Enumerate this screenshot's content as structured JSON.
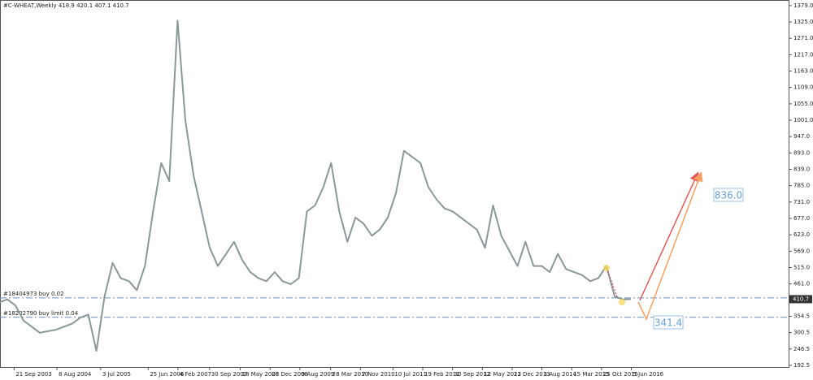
{
  "chart_data": {
    "type": "line",
    "title": "#C-WHEAT,Weekly  418.9 420.1 407.1 410.7",
    "color": "#8c9898",
    "x": [
      "2003-06-01",
      "2003-08-01",
      "2003-10-01",
      "2003-12-01",
      "2004-02-01",
      "2004-04-01",
      "2004-06-01",
      "2004-08-01",
      "2004-10-01",
      "2004-12-01",
      "2005-02-01",
      "2005-04-01",
      "2005-06-01",
      "2005-08-01",
      "2005-10-01",
      "2005-12-01",
      "2006-02-01",
      "2006-04-01",
      "2006-06-01",
      "2006-08-01",
      "2006-10-01",
      "2006-12-01",
      "2007-02-01",
      "2007-04-01",
      "2007-06-01",
      "2007-08-01",
      "2007-10-01",
      "2007-12-01",
      "2008-02-01",
      "2008-04-01",
      "2008-06-01",
      "2008-08-01",
      "2008-10-01",
      "2008-12-01",
      "2009-02-01",
      "2009-04-01",
      "2009-06-01",
      "2009-08-01",
      "2009-10-01",
      "2009-12-01",
      "2010-02-01",
      "2010-04-01",
      "2010-06-01",
      "2010-08-01",
      "2010-10-01",
      "2010-12-01",
      "2011-02-01",
      "2011-04-01",
      "2011-06-01",
      "2011-08-01",
      "2011-10-01",
      "2011-12-01",
      "2012-02-01",
      "2012-04-01",
      "2012-06-01",
      "2012-08-01",
      "2012-10-01",
      "2012-12-01",
      "2013-02-01",
      "2013-04-01",
      "2013-06-01",
      "2013-08-01",
      "2013-10-01",
      "2013-12-01",
      "2014-02-01",
      "2014-04-01",
      "2014-06-01",
      "2014-08-01",
      "2014-10-01",
      "2014-12-01",
      "2015-02-01",
      "2015-04-01",
      "2015-06-01",
      "2015-08-01",
      "2015-10-01",
      "2015-12-01",
      "2016-02-01",
      "2016-04-01",
      "2016-06-01"
    ],
    "values": [
      400,
      410,
      390,
      340,
      320,
      300,
      305,
      310,
      320,
      330,
      350,
      360,
      240,
      420,
      530,
      480,
      470,
      440,
      520,
      700,
      860,
      800,
      1330,
      1000,
      820,
      700,
      580,
      520,
      560,
      600,
      540,
      500,
      480,
      470,
      500,
      470,
      460,
      480,
      700,
      720,
      780,
      860,
      700,
      600,
      680,
      660,
      620,
      640,
      680,
      760,
      900,
      880,
      860,
      780,
      740,
      710,
      700,
      680,
      660,
      640,
      580,
      720,
      620,
      570,
      520,
      600,
      520,
      520,
      500,
      560,
      510,
      500,
      490,
      470,
      480,
      520,
      420,
      410,
      410.7
    ],
    "xlim": [
      "2003-06-07",
      "2019-09-01"
    ],
    "xticks": [
      {
        "value": "2003-09-21",
        "label": "21 Sep 2003"
      },
      {
        "value": "2004-08-08",
        "label": "8 Aug 2004"
      },
      {
        "value": "2005-07-03",
        "label": "3 Jul 2005"
      },
      {
        "value": "2006-06-25",
        "label": "25 Jun 2006"
      },
      {
        "value": "2007-02-04",
        "label": "4 Feb 2007"
      },
      {
        "value": "2007-09-30",
        "label": "30 Sep 2007"
      },
      {
        "value": "2008-05-18",
        "label": "18 May 2008"
      },
      {
        "value": "2008-12-28",
        "label": "28 Dec 2008"
      },
      {
        "value": "2009-08-09",
        "label": "9 Aug 2009"
      },
      {
        "value": "2010-03-28",
        "label": "28 Mar 2010"
      },
      {
        "value": "2010-11-07",
        "label": "7 Nov 2010"
      },
      {
        "value": "2011-07-10",
        "label": "10 Jul 2011"
      },
      {
        "value": "2012-02-19",
        "label": "19 Feb 2012"
      },
      {
        "value": "2012-09-30",
        "label": "30 Sep 2012"
      },
      {
        "value": "2013-05-12",
        "label": "12 May 2013"
      },
      {
        "value": "2013-12-22",
        "label": "22 Dec 2013"
      },
      {
        "value": "2014-08-03",
        "label": "3 Aug 2014"
      },
      {
        "value": "2015-03-15",
        "label": "15 Mar 2015"
      },
      {
        "value": "2015-10-25",
        "label": "25 Oct 2015"
      },
      {
        "value": "2016-06-05",
        "label": "5 Jun 2016"
      }
    ],
    "ylim": [
      187,
      1392
    ],
    "yticks": [
      {
        "value": 1379,
        "label": "1379.0"
      },
      {
        "value": 1325,
        "label": "1325.0"
      },
      {
        "value": 1271,
        "label": "1271.0"
      },
      {
        "value": 1217,
        "label": "1217.0"
      },
      {
        "value": 1163,
        "label": "1163.0"
      },
      {
        "value": 1109,
        "label": "1109.0"
      },
      {
        "value": 1055,
        "label": "1055.0"
      },
      {
        "value": 1001,
        "label": "1001.0"
      },
      {
        "value": 947,
        "label": "947.0"
      },
      {
        "value": 893,
        "label": "893.0"
      },
      {
        "value": 839,
        "label": "839.0"
      },
      {
        "value": 785,
        "label": "785.0"
      },
      {
        "value": 731,
        "label": "731.0"
      },
      {
        "value": 677,
        "label": "677.0"
      },
      {
        "value": 623,
        "label": "623.0"
      },
      {
        "value": 569,
        "label": "569.0"
      },
      {
        "value": 515,
        "label": "515.0"
      },
      {
        "value": 461,
        "label": "461.0"
      },
      {
        "value": 354.5,
        "label": "354.5"
      },
      {
        "value": 300.5,
        "label": "300.5"
      },
      {
        "value": 246.5,
        "label": "246.5"
      },
      {
        "value": 192.5,
        "label": "192.5"
      }
    ],
    "orders": [
      {
        "label": "#18404973 buy 0.02",
        "value": 415
      },
      {
        "label": "#18202790 buy limit 0.04",
        "value": 351
      }
    ],
    "targets": [
      "836.0",
      "341.4"
    ]
  }
}
